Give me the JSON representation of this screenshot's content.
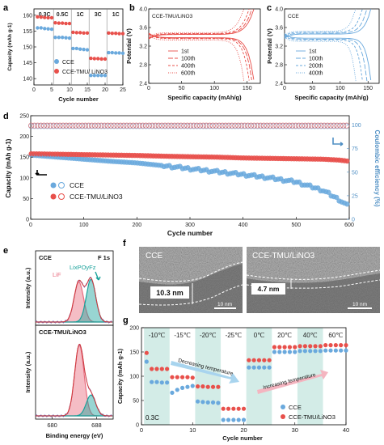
{
  "figure": {
    "panel_labels": [
      "a",
      "b",
      "c",
      "d",
      "e",
      "f",
      "g"
    ],
    "colors": {
      "cce": "#6aa9dd",
      "tmu": "#e8504b",
      "teal": "#1aa29b",
      "lif": "#e86c7f",
      "fill_light_blue": "#a8d4ee",
      "shade": "#d3ece7"
    }
  },
  "chart_data": [
    {
      "id": "a",
      "type": "scatter",
      "xlabel": "Cycle number",
      "ylabel": "Capacity (mAh g-1)",
      "xlim": [
        0,
        25
      ],
      "ylim": [
        138,
        162
      ],
      "xticks": [
        0,
        5,
        10,
        15,
        20,
        25
      ],
      "yticks": [
        140,
        145,
        150,
        155,
        160
      ],
      "rate_labels": [
        "0.3C",
        "0.5C",
        "1C",
        "3C",
        "1C"
      ],
      "series": [
        {
          "name": "CCE",
          "x": [
            1,
            2,
            3,
            4,
            5,
            6,
            7,
            8,
            9,
            10,
            11,
            12,
            13,
            14,
            15,
            16,
            17,
            18,
            19,
            20,
            21,
            22,
            23,
            24,
            25
          ],
          "values": [
            156,
            156,
            155.8,
            155.7,
            155.6,
            153,
            153,
            153,
            152.9,
            152.8,
            149.5,
            149.5,
            149.3,
            149.2,
            149.1,
            141,
            141,
            141,
            141,
            141,
            148.2,
            148.2,
            148.1,
            148.1,
            148
          ]
        },
        {
          "name": "CCE-TMU/ LiNO3",
          "x": [
            1,
            2,
            3,
            4,
            5,
            6,
            7,
            8,
            9,
            10,
            11,
            12,
            13,
            14,
            15,
            16,
            17,
            18,
            19,
            20,
            21,
            22,
            23,
            24,
            25
          ],
          "values": [
            159.5,
            159.4,
            159.3,
            159.2,
            159.2,
            157.6,
            157.5,
            157.5,
            157.4,
            157.4,
            154.6,
            154.5,
            154.5,
            154.4,
            154.4,
            146.4,
            146.3,
            146.3,
            146.2,
            146.2,
            154.4,
            154.3,
            154.3,
            154.2,
            154.2
          ]
        }
      ]
    },
    {
      "id": "b",
      "type": "line",
      "title": "CCE-TMU/LiNO3",
      "xlabel": "Specific capacity (mAh/g)",
      "ylabel": "Potential (V)",
      "xlim": [
        0,
        170
      ],
      "ylim": [
        2.4,
        4.0
      ],
      "xticks": [
        0,
        50,
        100,
        150
      ],
      "yticks": [
        2.4,
        2.8,
        3.2,
        3.6,
        4.0
      ],
      "series": [
        {
          "name": "1st",
          "charge_plateau": 3.45,
          "discharge_plateau": 3.38,
          "capacity": 160
        },
        {
          "name": "100th",
          "charge_plateau": 3.46,
          "discharge_plateau": 3.37,
          "capacity": 157
        },
        {
          "name": "400th",
          "charge_plateau": 3.47,
          "discharge_plateau": 3.36,
          "capacity": 153
        },
        {
          "name": "600th",
          "charge_plateau": 3.49,
          "discharge_plateau": 3.33,
          "capacity": 145
        }
      ]
    },
    {
      "id": "c",
      "type": "line",
      "title": "CCE",
      "xlabel": "Specific capacity (mAh/g)",
      "ylabel": "Potential (V)",
      "xlim": [
        0,
        170
      ],
      "ylim": [
        2.4,
        4.0
      ],
      "xticks": [
        0,
        50,
        100,
        150
      ],
      "yticks": [
        2.4,
        2.8,
        3.2,
        3.6,
        4.0
      ],
      "series": [
        {
          "name": "1st",
          "charge_plateau": 3.46,
          "discharge_plateau": 3.37,
          "capacity": 155
        },
        {
          "name": "100th",
          "charge_plateau": 3.48,
          "discharge_plateau": 3.35,
          "capacity": 148
        },
        {
          "name": "200th",
          "charge_plateau": 3.5,
          "discharge_plateau": 3.33,
          "capacity": 140
        },
        {
          "name": "400th",
          "charge_plateau": 3.52,
          "discharge_plateau": 3.3,
          "capacity": 128
        }
      ]
    },
    {
      "id": "d",
      "type": "scatter",
      "xlabel": "Cycle number",
      "ylabel": "Capacity (mAh g-1)",
      "y2label": "Coulombic efficiency (%)",
      "xlim": [
        0,
        600
      ],
      "ylim": [
        0,
        250
      ],
      "y2lim": [
        0,
        110
      ],
      "xticks": [
        0,
        100,
        200,
        300,
        400,
        500,
        600
      ],
      "yticks": [
        0,
        50,
        100,
        150,
        200,
        250
      ],
      "y2ticks": [
        0,
        25,
        50,
        75,
        100
      ],
      "legend": [
        "CCE",
        "CCE-TMU/LiNO3"
      ],
      "capacity": {
        "x": [
          1,
          50,
          100,
          150,
          200,
          230,
          260,
          300,
          350,
          400,
          450,
          500,
          550,
          580,
          600
        ],
        "CCE": [
          155,
          150,
          145,
          140,
          136,
          132,
          128,
          122,
          115,
          108,
          100,
          90,
          70,
          48,
          30
        ],
        "CCE-TMU/LiNO3": [
          158,
          157,
          156,
          155,
          154,
          153,
          152,
          151,
          150,
          148,
          147,
          146,
          145,
          143,
          140
        ]
      },
      "ce": {
        "CCE": 99.5,
        "CCE-TMU/LiNO3": 99.8
      }
    },
    {
      "id": "e",
      "type": "area",
      "xlabel": "Binding energy (eV)",
      "ylabel": "Intensity (a.u.)",
      "xlim": [
        677,
        691
      ],
      "xticks": [
        680,
        688
      ],
      "subplots": [
        {
          "title": "CCE",
          "corner_label": "F 1s",
          "peaks": [
            {
              "name": "LiF",
              "center": 684.8,
              "height": 0.8
            },
            {
              "name": "LixPOyFz",
              "center": 687.0,
              "height": 0.85
            }
          ]
        },
        {
          "title": "CCE-TMU/LiNO3",
          "peaks": [
            {
              "name": "LiF",
              "center": 684.9,
              "height": 0.95
            },
            {
              "name": "LixPOyFz",
              "center": 687.0,
              "height": 0.28
            }
          ]
        }
      ]
    },
    {
      "id": "f",
      "type": "table",
      "images": [
        {
          "title": "CCE",
          "thickness": "10.3 nm",
          "scale": "10 nm"
        },
        {
          "title": "CCE-TMU/LiNO3",
          "thickness": "4.7 nm",
          "scale": "10 nm"
        }
      ]
    },
    {
      "id": "g",
      "type": "scatter",
      "xlabel": "Cycle number",
      "ylabel": "Capacity (mAh g-1)",
      "xlim": [
        0,
        40
      ],
      "ylim": [
        0,
        200
      ],
      "xticks": [
        0,
        10,
        20,
        30,
        40
      ],
      "yticks": [
        0,
        50,
        100,
        150,
        200
      ],
      "temperatures": [
        "-10℃",
        "-15℃",
        "-20℃",
        "-25℃",
        "0℃",
        "20℃",
        "40℃",
        "60℃"
      ],
      "annotations": [
        "Decreasing temperature",
        "Increasing temperature",
        "0.3C"
      ],
      "legend": [
        "CCE",
        "CCE-TMU/LiNO3"
      ],
      "series": [
        {
          "name": "CCE",
          "x": [
            1,
            2,
            3,
            4,
            5,
            6,
            7,
            8,
            9,
            10,
            11,
            12,
            13,
            14,
            15,
            16,
            17,
            18,
            19,
            20,
            21,
            22,
            23,
            24,
            25,
            26,
            27,
            28,
            29,
            30,
            31,
            32,
            33,
            34,
            35,
            36,
            37,
            38,
            39,
            40
          ],
          "values": [
            130,
            88,
            88,
            87,
            87,
            66,
            72,
            76,
            78,
            80,
            48,
            47,
            46,
            46,
            45,
            10,
            10,
            10,
            10,
            10,
            118,
            118,
            118,
            118,
            118,
            150,
            150,
            150,
            150,
            150,
            152,
            152,
            152,
            152,
            152,
            153,
            153,
            153,
            153,
            153
          ]
        },
        {
          "name": "CCE-TMU/LiNO3",
          "x": [
            1,
            2,
            3,
            4,
            5,
            6,
            7,
            8,
            9,
            10,
            11,
            12,
            13,
            14,
            15,
            16,
            17,
            18,
            19,
            20,
            21,
            22,
            23,
            24,
            25,
            26,
            27,
            28,
            29,
            30,
            31,
            32,
            33,
            34,
            35,
            36,
            37,
            38,
            39,
            40
          ],
          "values": [
            148,
            115,
            115,
            115,
            115,
            98,
            98,
            98,
            98,
            97,
            79,
            79,
            78,
            78,
            78,
            33,
            33,
            33,
            33,
            33,
            133,
            133,
            133,
            133,
            133,
            160,
            160,
            160,
            160,
            160,
            162,
            162,
            162,
            162,
            162,
            164,
            164,
            164,
            164,
            164
          ]
        }
      ]
    }
  ]
}
